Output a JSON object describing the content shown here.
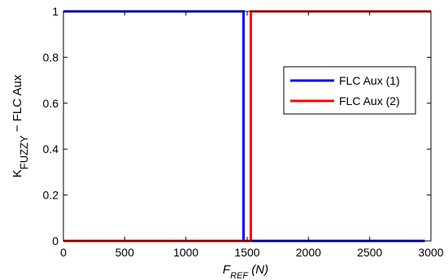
{
  "chart_data": {
    "type": "line",
    "title": "",
    "xlabel": "F",
    "xlabel_sub": "REF",
    "xlabel_unit": " (N)",
    "ylabel": "K",
    "ylabel_sub": "FUZZY",
    "ylabel_suffix": " − FLC Aux",
    "xlim": [
      0,
      3000
    ],
    "ylim": [
      0,
      1
    ],
    "xticks": [
      0,
      500,
      1000,
      1500,
      2000,
      2500,
      3000
    ],
    "xtick_labels": [
      "0",
      "500",
      "1000",
      "1500",
      "2000",
      "2500",
      "3000"
    ],
    "yticks": [
      0,
      0.2,
      0.4,
      0.6,
      0.8,
      1
    ],
    "ytick_labels": [
      "0",
      "0.2",
      "0.4",
      "0.6",
      "0.8",
      "1"
    ],
    "grid": false,
    "legend_position": "right",
    "series": [
      {
        "name": "FLC Aux (1)",
        "color": "#0000ff",
        "x": [
          0,
          1470,
          1470,
          2950
        ],
        "y": [
          1,
          1,
          0,
          0
        ]
      },
      {
        "name": "FLC Aux (2)",
        "color": "#ff0000",
        "x": [
          0,
          1530,
          1530,
          3000
        ],
        "y": [
          0,
          0,
          1,
          1
        ]
      }
    ]
  }
}
